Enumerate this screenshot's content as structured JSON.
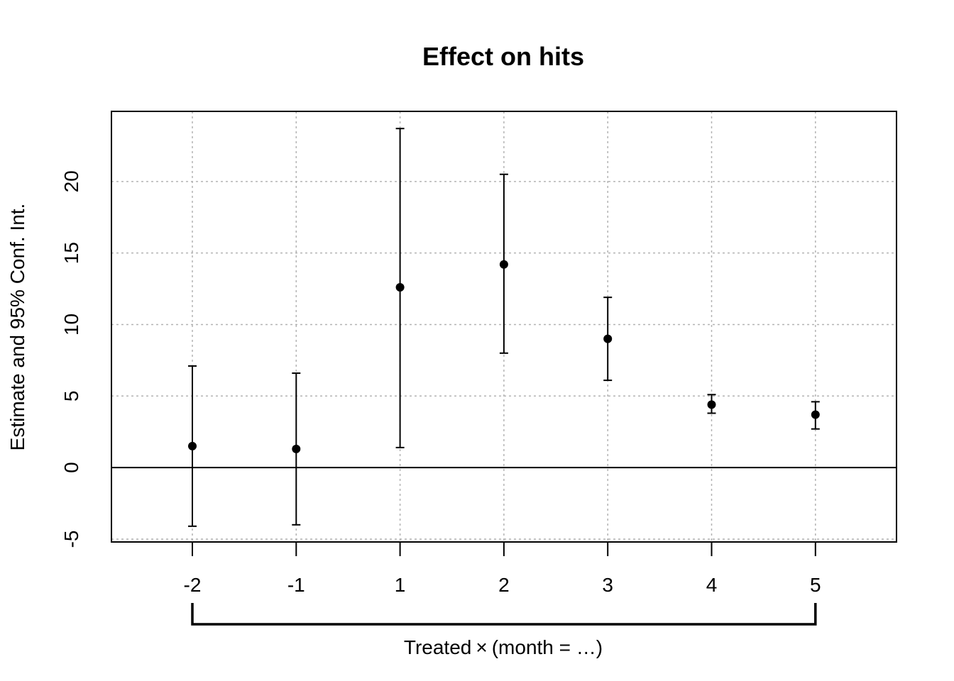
{
  "chart_data": {
    "type": "scatter",
    "title": "Effect on hits",
    "ylabel": "Estimate and 95% Conf. Int.",
    "xlabel_prefix": "Treated",
    "xlabel_operator": "×",
    "xlabel_group": "(month = …)",
    "categories": [
      "-2",
      "-1",
      "1",
      "2",
      "3",
      "4",
      "5"
    ],
    "estimate": [
      1.5,
      1.3,
      12.6,
      14.2,
      9.0,
      4.4,
      3.7
    ],
    "ci_lower": [
      -4.1,
      -4.0,
      1.4,
      8.0,
      6.1,
      3.8,
      2.7
    ],
    "ci_upper": [
      7.1,
      6.6,
      23.7,
      20.5,
      11.9,
      5.1,
      4.6
    ],
    "y_ticks": [
      -5,
      0,
      5,
      10,
      15,
      20
    ],
    "ylim": [
      -5.2,
      24.9
    ],
    "xlim_index": [
      -0.78,
      6.78
    ],
    "grid": true,
    "reference_line_y": 0
  },
  "colors": {
    "points": "#000000",
    "grid": "#b3b3b3",
    "background": "#ffffff"
  }
}
